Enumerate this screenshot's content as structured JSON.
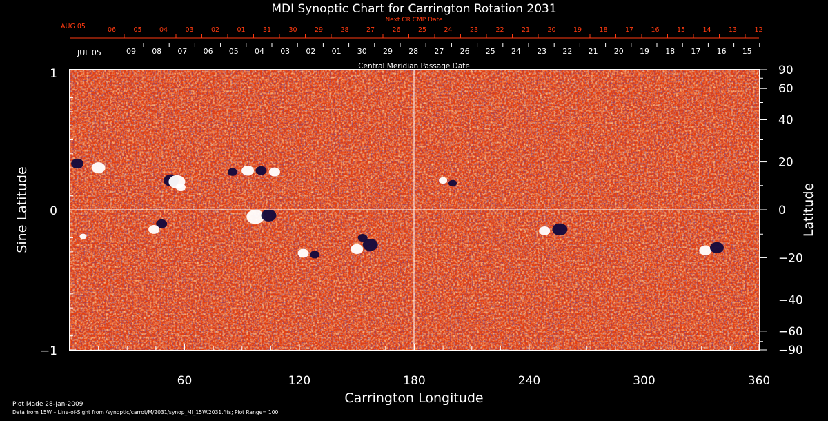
{
  "chart_data": {
    "type": "heatmap",
    "title": "MDI Synoptic Chart for Carrington Rotation 2031",
    "xlabel": "Carrington Longitude",
    "ylabel": "Sine Latitude",
    "ylabel_right": "Latitude",
    "xlim": [
      0,
      360
    ],
    "ylim": [
      -1,
      1
    ],
    "x_ticks": [
      "60",
      "120",
      "180",
      "240",
      "300",
      "360"
    ],
    "y_ticks": [
      "1",
      "0",
      "−1"
    ],
    "lat_ticks": [
      "90",
      "60",
      "40",
      "20",
      "0",
      "−20",
      "−40",
      "−60",
      "−90"
    ],
    "top_axis_red": {
      "label": "Next CR CMP Date",
      "month": "AUG 05",
      "days": [
        "06",
        "05",
        "04",
        "03",
        "02",
        "01",
        "31",
        "30",
        "29",
        "28",
        "27",
        "26",
        "25",
        "24",
        "23",
        "22",
        "21",
        "20",
        "19",
        "18",
        "17",
        "16",
        "15",
        "14",
        "13",
        "12"
      ]
    },
    "top_axis_white": {
      "label": "Central Meridian Passage Date",
      "month": "JUL 05",
      "days": [
        "09",
        "08",
        "07",
        "06",
        "05",
        "04",
        "03",
        "02",
        "01",
        "30",
        "29",
        "28",
        "27",
        "26",
        "25",
        "24",
        "23",
        "22",
        "21",
        "20",
        "19",
        "18",
        "17",
        "16",
        "15"
      ]
    },
    "color_scale": {
      "positive": "#ffffff",
      "mid": "#ff5a14",
      "negative": "#1a0a50",
      "background": "#000000"
    },
    "plot_range": 100
  },
  "footer": {
    "made": "Plot Made 28-Jan-2009",
    "source": "Data from 15W – Line-of-Sight from /synoptic/carrot/M/2031/synop_Ml_15W.2031.fits; Plot Range=  100"
  }
}
